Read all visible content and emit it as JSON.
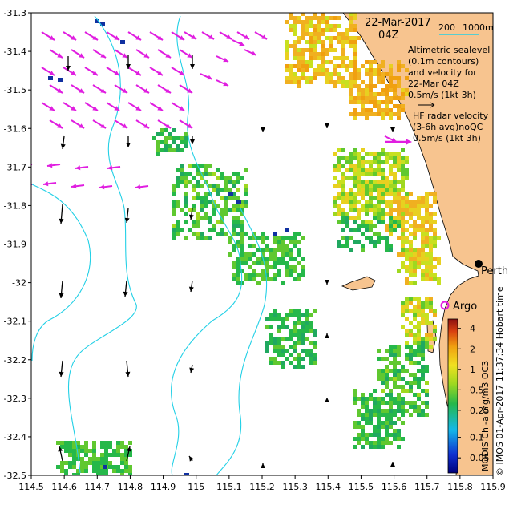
{
  "map": {
    "date_label": "22-Mar-2017",
    "time_label": "04Z",
    "contour_legend": {
      "a": "200",
      "b": "1000m"
    },
    "altimetric_legend": [
      "Altimetric sealevel",
      "(0.1m contours)",
      "and velocity for",
      "22-Mar 04Z",
      "0.5m/s (1kt 3h)"
    ],
    "hf_legend": [
      "HF radar velocity",
      "(3-6h avg)noQC",
      "0.5m/s (1kt 3h)"
    ],
    "place_labels": {
      "perth": "Perth",
      "argo": "Argo"
    },
    "colorbar_title": "MODIS Chl-a mg/m3 OC3",
    "credit": "© IMOS 01-Apr-2017 11:37:34 Hobart time",
    "colorbar_labels": [
      "4",
      "2",
      "1",
      "0.5",
      "0.25",
      "0.1",
      "0.05"
    ],
    "colorbar_values": [
      4,
      2,
      1,
      0.5,
      0.25,
      0.1,
      0.05
    ],
    "x_ticks": [
      "114.5",
      "114.6",
      "114.7",
      "114.8",
      "114.9",
      "115",
      "115.1",
      "115.2",
      "115.3",
      "115.4",
      "115.5",
      "115.6",
      "115.7",
      "115.8",
      "115.9"
    ],
    "y_ticks": [
      "-31.3",
      "-31.4",
      "-31.5",
      "-31.6",
      "-31.7",
      "-31.8",
      "-31.9",
      "-32",
      "-32.1",
      "-32.2",
      "-32.3",
      "-32.4",
      "-32.5"
    ],
    "lon_range": [
      114.5,
      115.9
    ],
    "lat_range": [
      -32.5,
      -31.3
    ],
    "colors": {
      "land": "#f7c48f",
      "contour": "#22d0e6",
      "hf_arrow": "#e01ee0",
      "alt_arrow": "#000000",
      "argo": "#e01ee0"
    }
  }
}
